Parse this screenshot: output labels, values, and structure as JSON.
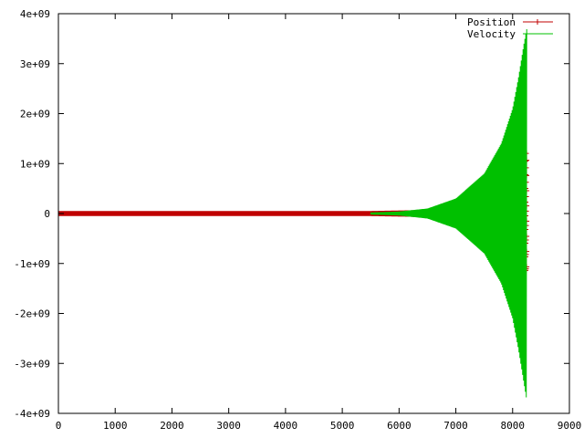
{
  "chart_data": {
    "type": "line",
    "title": "",
    "xlabel": "",
    "ylabel": "",
    "xlim": [
      0,
      9000
    ],
    "ylim": [
      -4000000000,
      4000000000
    ],
    "grid": false,
    "legend_position": "top-right",
    "x_ticks": [
      {
        "value": 0,
        "label": "0"
      },
      {
        "value": 1000,
        "label": "1000"
      },
      {
        "value": 2000,
        "label": "2000"
      },
      {
        "value": 3000,
        "label": "3000"
      },
      {
        "value": 4000,
        "label": "4000"
      },
      {
        "value": 5000,
        "label": "5000"
      },
      {
        "value": 6000,
        "label": "6000"
      },
      {
        "value": 7000,
        "label": "7000"
      },
      {
        "value": 8000,
        "label": "8000"
      },
      {
        "value": 9000,
        "label": "9000"
      }
    ],
    "y_ticks": [
      {
        "value": 4000000000,
        "label": "4e+09"
      },
      {
        "value": 3000000000,
        "label": "3e+09"
      },
      {
        "value": 2000000000,
        "label": "2e+09"
      },
      {
        "value": 1000000000,
        "label": "1e+09"
      },
      {
        "value": 0,
        "label": "0"
      },
      {
        "value": -1000000000,
        "label": "-1e+09"
      },
      {
        "value": -2000000000,
        "label": "-2e+09"
      },
      {
        "value": -3000000000,
        "label": "-3e+09"
      },
      {
        "value": -4000000000,
        "label": "-4e+09"
      }
    ],
    "series": [
      {
        "name": "Position",
        "color": "#c00000",
        "style": "linespoints",
        "envelope": {
          "x": [
            0,
            5500,
            6000,
            6500,
            7000,
            7500,
            7800,
            8000,
            8100,
            8200,
            8250
          ],
          "upper": [
            50000000,
            50000000,
            60000000,
            70000000,
            90000000,
            140000000,
            220000000,
            350000000,
            500000000,
            900000000,
            1300000000
          ],
          "lower": [
            -50000000,
            -50000000,
            -60000000,
            -70000000,
            -90000000,
            -140000000,
            -220000000,
            -350000000,
            -500000000,
            -900000000,
            -1300000000
          ]
        }
      },
      {
        "name": "Velocity",
        "color": "#00c000",
        "style": "lines",
        "envelope": {
          "x": [
            5500,
            6000,
            6500,
            7000,
            7500,
            7800,
            8000,
            8100,
            8200,
            8250
          ],
          "upper": [
            20000000,
            40000000,
            100000000,
            300000000,
            800000000,
            1400000000,
            2100000000,
            2700000000,
            3400000000,
            3700000000
          ],
          "lower": [
            -20000000,
            -40000000,
            -100000000,
            -300000000,
            -800000000,
            -1400000000,
            -2100000000,
            -2700000000,
            -3400000000,
            -3750000000
          ]
        }
      }
    ]
  }
}
